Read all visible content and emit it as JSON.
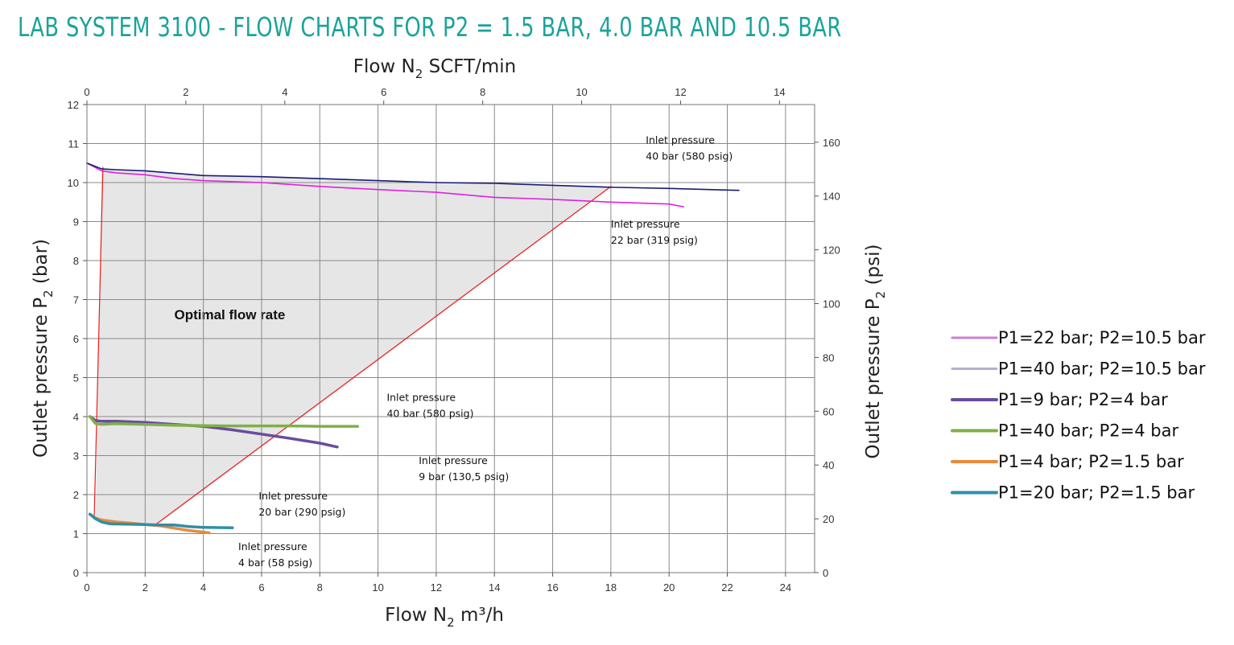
{
  "title": "LAB SYSTEM 3100 - FLOW CHARTS FOR P2 = 1.5 BAR, 4.0 BAR AND 10.5 BAR",
  "colors": {
    "title": "#1aa39a",
    "grid": "#8a8a8a",
    "frame": "#777777",
    "region": "#e6e6e6",
    "guide": "#ee1c1c"
  },
  "chart_data": {
    "type": "line",
    "xlabel": {
      "base": "Flow N",
      "sub": "2",
      "unit": " m³/h"
    },
    "x2label": {
      "base": "Flow N",
      "sub": "2",
      "unit": " SCFT/min"
    },
    "ylabel": {
      "base": "Outlet pressure  P",
      "sub": "2",
      "unit": " (bar)"
    },
    "y2label": {
      "base": "Outlet pressure P",
      "sub": "2",
      "unit": " (psi)"
    },
    "xlim": [
      0,
      25
    ],
    "ylim": [
      0,
      12
    ],
    "x2lim": [
      0,
      14.71
    ],
    "y2lim": [
      0,
      174
    ],
    "x_ticks": [
      0,
      2,
      4,
      6,
      8,
      10,
      12,
      14,
      16,
      18,
      20,
      22,
      24
    ],
    "y_ticks": [
      0,
      1,
      2,
      3,
      4,
      5,
      6,
      7,
      8,
      9,
      10,
      11,
      12
    ],
    "x2_ticks": [
      0,
      2,
      4,
      6,
      8,
      10,
      12,
      14
    ],
    "y2_ticks": [
      0,
      20,
      40,
      60,
      80,
      100,
      120,
      140,
      160
    ],
    "grid": true,
    "legend_position": "right",
    "series": [
      {
        "name": "P1=22 bar; P2=10.5 bar",
        "color": "#e020e0",
        "legend_color": "#c880d8",
        "width": 1.6,
        "x": [
          0,
          0.5,
          1,
          2,
          3,
          4,
          6,
          8,
          10,
          12,
          14,
          16,
          18,
          20,
          20.5
        ],
        "y": [
          10.5,
          10.3,
          10.25,
          10.2,
          10.1,
          10.05,
          10.0,
          9.9,
          9.82,
          9.75,
          9.62,
          9.57,
          9.5,
          9.45,
          9.38
        ]
      },
      {
        "name": "P1=40 bar; P2=10.5 bar",
        "color": "#1a1a78",
        "legend_color": "#b0b0d8",
        "width": 1.6,
        "x": [
          0,
          0.5,
          1,
          2,
          4,
          6,
          8,
          10,
          12,
          14,
          16,
          18,
          20,
          22.4
        ],
        "y": [
          10.5,
          10.35,
          10.33,
          10.3,
          10.18,
          10.15,
          10.1,
          10.05,
          10.0,
          9.98,
          9.93,
          9.88,
          9.85,
          9.8
        ]
      },
      {
        "name": "P1=9 bar; P2=4 bar",
        "color": "#6a4c9c",
        "legend_color": "#6a4c9c",
        "width": 3.5,
        "x": [
          0.1,
          0.3,
          0.5,
          1,
          2,
          3,
          4,
          5,
          6,
          7,
          8,
          8.6
        ],
        "y": [
          4.0,
          3.9,
          3.88,
          3.88,
          3.85,
          3.8,
          3.75,
          3.66,
          3.55,
          3.44,
          3.32,
          3.22
        ]
      },
      {
        "name": "P1=40 bar; P2=4 bar",
        "color": "#7fb048",
        "legend_color": "#7fb048",
        "width": 3.5,
        "x": [
          0.1,
          0.3,
          0.5,
          1,
          2,
          3,
          4,
          5,
          6,
          7,
          8,
          9.3
        ],
        "y": [
          4.0,
          3.82,
          3.8,
          3.82,
          3.8,
          3.78,
          3.77,
          3.76,
          3.76,
          3.76,
          3.75,
          3.75
        ]
      },
      {
        "name": "P1=4 bar; P2=1.5 bar",
        "color": "#ea8a3c",
        "legend_color": "#ea8a3c",
        "width": 3.5,
        "x": [
          0.1,
          0.3,
          0.5,
          1,
          1.5,
          2,
          2.5,
          3,
          3.5,
          4.2
        ],
        "y": [
          1.5,
          1.4,
          1.35,
          1.3,
          1.27,
          1.23,
          1.2,
          1.14,
          1.08,
          1.02
        ]
      },
      {
        "name": "P1=20 bar; P2=1.5 bar",
        "color": "#2e8fa8",
        "legend_color": "#2e8fa8",
        "width": 3.5,
        "x": [
          0.1,
          0.3,
          0.5,
          0.8,
          1.5,
          2,
          2.5,
          3,
          3.5,
          4,
          5
        ],
        "y": [
          1.5,
          1.38,
          1.3,
          1.25,
          1.24,
          1.23,
          1.22,
          1.22,
          1.18,
          1.16,
          1.15
        ]
      }
    ],
    "region": {
      "label": "Optimal flow rate",
      "label_at": [
        3,
        6.5
      ],
      "polygon": [
        [
          0.5,
          10.35
        ],
        [
          1,
          10.33
        ],
        [
          2,
          10.3
        ],
        [
          4,
          10.18
        ],
        [
          6,
          10.15
        ],
        [
          8,
          10.1
        ],
        [
          10,
          10.05
        ],
        [
          12,
          10.0
        ],
        [
          14,
          9.98
        ],
        [
          16,
          9.93
        ],
        [
          18,
          9.88
        ],
        [
          2.4,
          1.21
        ],
        [
          2,
          1.23
        ],
        [
          1.5,
          1.24
        ],
        [
          0.8,
          1.25
        ],
        [
          0.5,
          1.3
        ],
        [
          0.3,
          1.38
        ]
      ]
    },
    "guide_lines": [
      {
        "x": [
          0.25,
          0.55
        ],
        "y": [
          1.4,
          10.4
        ]
      },
      {
        "x": [
          2.3,
          18.0
        ],
        "y": [
          1.2,
          9.9
        ]
      }
    ],
    "annotations": [
      {
        "lines": [
          "Inlet pressure",
          "40 bar (580 psig)"
        ],
        "at": [
          19.2,
          11.0
        ]
      },
      {
        "lines": [
          "Inlet pressure",
          "22 bar (319 psig)"
        ],
        "at": [
          18.0,
          8.85
        ]
      },
      {
        "lines": [
          "Inlet pressure",
          "40 bar (580 psig)"
        ],
        "at": [
          10.3,
          4.4
        ]
      },
      {
        "lines": [
          "Inlet pressure",
          "9 bar (130,5 psig)"
        ],
        "at": [
          11.4,
          2.78
        ]
      },
      {
        "lines": [
          "Inlet pressure",
          "20 bar (290 psig)"
        ],
        "at": [
          5.9,
          1.88
        ]
      },
      {
        "lines": [
          "Inlet pressure",
          "4 bar (58 psig)"
        ],
        "at": [
          5.2,
          0.58
        ]
      }
    ]
  }
}
